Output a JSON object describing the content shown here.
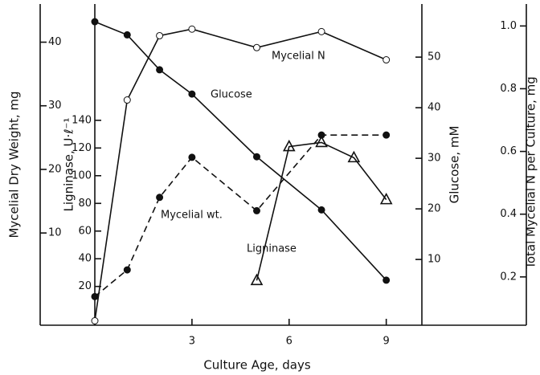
{
  "chart_data": {
    "type": "line",
    "xlabel": "Culture Age, days",
    "xlim": [
      0,
      10.1
    ],
    "xticks": [
      3,
      6,
      9
    ],
    "ylabel": "Mycelial Dry Weight, mg",
    "ylim": [
      -4.5,
      46
    ],
    "yticks": [
      10,
      20,
      30,
      40
    ],
    "y2label": "Ligninase, U·ℓ⁻¹",
    "y2lim": [
      -8,
      224
    ],
    "y2ticks": [
      20,
      40,
      60,
      80,
      100,
      120,
      140
    ],
    "y3label": "Glucose, mM",
    "y3lim": [
      -3,
      60.5
    ],
    "y3ticks": [
      10,
      20,
      30,
      40,
      50
    ],
    "y4label": "Total Mycelial N per Culture, mg",
    "y4lim": [
      0.046,
      1.07
    ],
    "y4ticks": [
      0.2,
      0.4,
      0.6,
      0.8,
      {
        "value": 1,
        "label": "1.0"
      }
    ],
    "series": [
      {
        "name": "Mycelial N",
        "axis": "y4",
        "color": "#111111",
        "marker": "open-circle",
        "dash": false,
        "x": [
          0,
          1,
          2,
          3,
          5,
          7,
          9
        ],
        "values": [
          0.06,
          0.764,
          0.969,
          0.99,
          0.931,
          0.982,
          0.892
        ]
      },
      {
        "name": "Glucose",
        "axis": "y3",
        "color": "#111111",
        "marker": "filled-circle",
        "dash": false,
        "x": [
          0,
          1,
          2,
          3,
          5,
          7,
          9
        ],
        "values": [
          57,
          54.4,
          47.5,
          42.7,
          30.3,
          19.8,
          5.9
        ]
      },
      {
        "name": "Mycelial wt.",
        "axis": "y",
        "color": "#111111",
        "marker": "filled-circle",
        "dash": true,
        "x": [
          0,
          1,
          2,
          3,
          5,
          7,
          9
        ],
        "values": [
          0,
          4.2,
          15.6,
          21.9,
          13.5,
          25.4,
          25.4
        ]
      },
      {
        "name": "Ligninase",
        "axis": "y2",
        "color": "#111111",
        "marker": "open-triangle",
        "dash": false,
        "x": [
          5,
          6,
          7,
          8,
          9
        ],
        "values": [
          24.3,
          121,
          124,
          113,
          82.7
        ]
      }
    ]
  }
}
